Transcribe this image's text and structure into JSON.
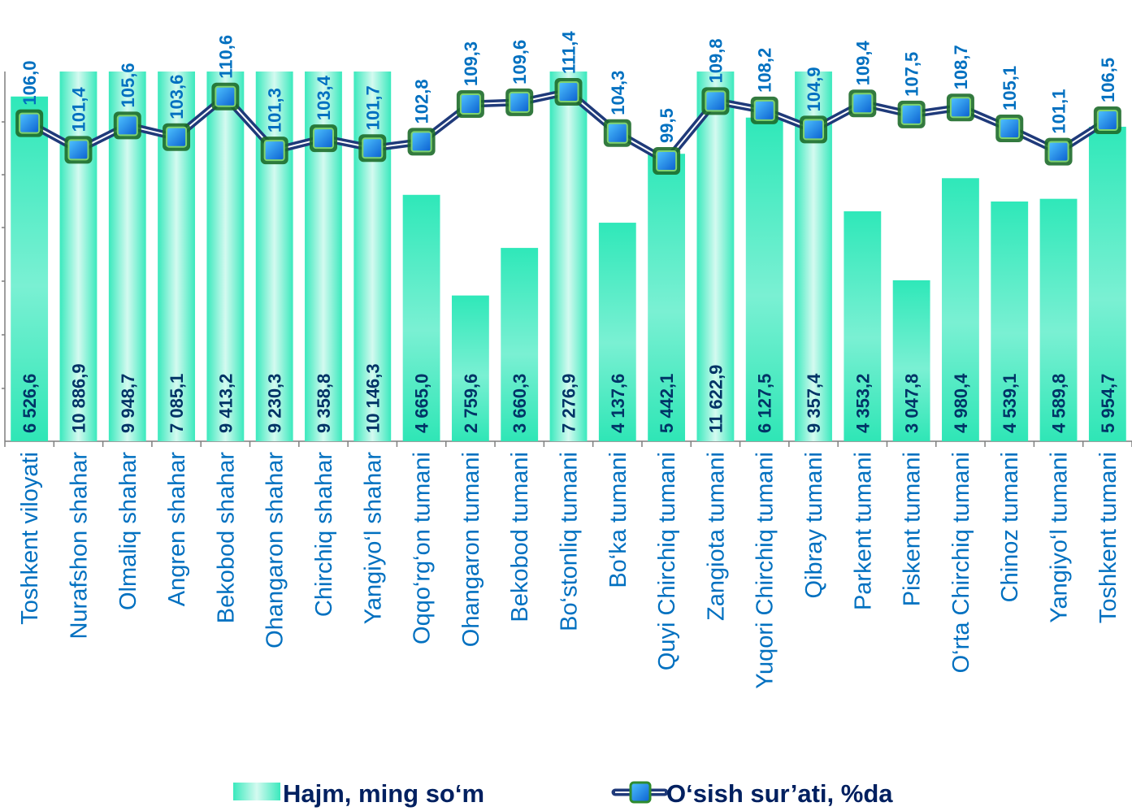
{
  "chart_data": {
    "type": "bar",
    "categories": [
      "Toshkent viloyati",
      "Nurafshon shahar",
      "Olmaliq shahar",
      "Angren shahar",
      "Bekobod shahar",
      "Ohangaron shahar",
      "Chirchiq shahar",
      "Yangiyo‘l shahar",
      "Oqqo‘rg‘on tumani",
      "Ohangaron tumani",
      "Bekobod tumani",
      "Bo‘stonliq tumani",
      "Bo‘ka tumani",
      "Quyi Chirchiq tumani",
      "Zangiota tumani",
      "Yuqori Chirchiq tumani",
      "Qibray tumani",
      "Parkent tumani",
      "Piskent tumani",
      "O‘rta Chirchiq tumani",
      "Chinoz tumani",
      "Yangiyo‘l tumani",
      "Toshkent tumani"
    ],
    "bar_labels": [
      "6 526,6",
      "10 886,9",
      "9 948,7",
      "7 085,1",
      "9 413,2",
      "9 230,3",
      "9 358,8",
      "10 146,3",
      "4 665,0",
      "2 759,6",
      "3 660,3",
      "7 276,9",
      "4 137,6",
      "5 442,1",
      "11 622,9",
      "6 127,5",
      "9 357,4",
      "4 353,2",
      "3 047,8",
      "4 980,4",
      "4 539,1",
      "4 589,8",
      "5 954,7"
    ],
    "line_labels": [
      "106,0",
      "101,4",
      "105,6",
      "103,6",
      "110,6",
      "101,3",
      "103,4",
      "101,7",
      "102,8",
      "109,3",
      "109,6",
      "111,4",
      "104,3",
      "99,5",
      "109,8",
      "108,2",
      "104,9",
      "109,4",
      "107,5",
      "108,7",
      "105,1",
      "101,1",
      "106,5"
    ],
    "series": [
      {
        "name": "Hajm, ming so‘m",
        "type": "bar",
        "values": [
          6526.6,
          10886.9,
          9948.7,
          7085.1,
          9413.2,
          9230.3,
          9358.8,
          10146.3,
          4665.0,
          2759.6,
          3660.3,
          7276.9,
          4137.6,
          5442.1,
          11622.9,
          6127.5,
          9357.4,
          4353.2,
          3047.8,
          4980.4,
          4539.1,
          4589.8,
          5954.7
        ]
      },
      {
        "name": "O‘sish sur’ati,  %da",
        "type": "line",
        "values": [
          106.0,
          101.4,
          105.6,
          103.6,
          110.6,
          101.3,
          103.4,
          101.7,
          102.8,
          109.3,
          109.6,
          111.4,
          104.3,
          99.5,
          109.8,
          108.2,
          104.9,
          109.4,
          107.5,
          108.7,
          105.1,
          101.1,
          106.5
        ]
      }
    ],
    "bar_display_max": 7000,
    "line_range": [
      99.5,
      111.4
    ],
    "legend_position": "bottom",
    "colors": {
      "bar_top": "#2ee6b8",
      "bar_light": "#bff7ea",
      "line": "#1f3a7a",
      "marker_fill": "#1e90ff",
      "marker_border": "#2e8b2e",
      "bar_label": "#003366",
      "line_label": "#0070c0",
      "category_label": "#0070c0"
    }
  }
}
